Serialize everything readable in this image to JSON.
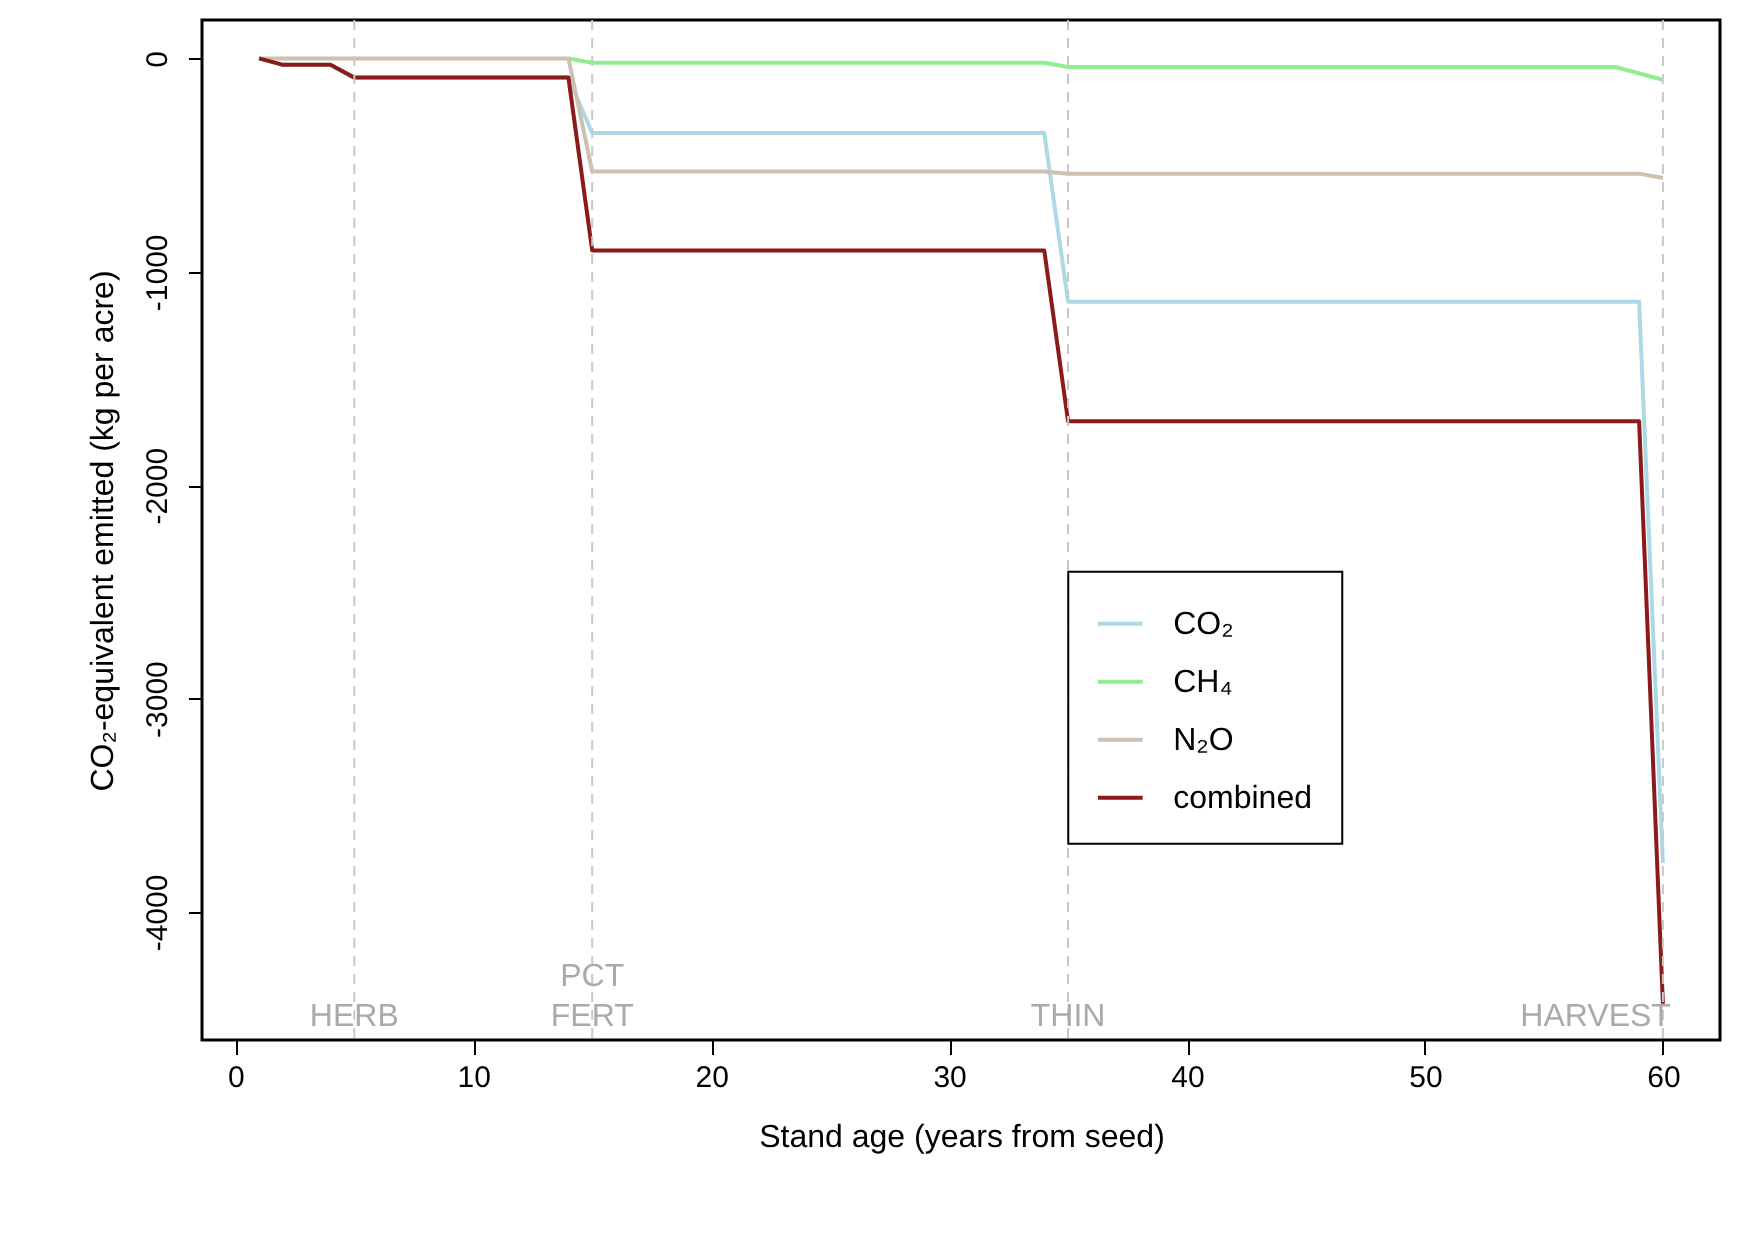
{
  "chart_data": {
    "type": "line",
    "xlabel": "Stand age (years from seed)",
    "ylabel": "CO₂-equivalent emitted (kg per acre)",
    "xlim": [
      -1.4,
      62.4
    ],
    "xticks": [
      0,
      10,
      20,
      30,
      40,
      50,
      60
    ],
    "ylim": [
      -4600,
      180
    ],
    "yticks": [
      0,
      -1000,
      -2000,
      -3000,
      -4000
    ],
    "grid": false,
    "legend": "right",
    "series": [
      {
        "name": "CO₂",
        "color": "#add8e6",
        "x": [
          1,
          2,
          4,
          5,
          14,
          15,
          34,
          35,
          59,
          60
        ],
        "values": [
          0,
          -30,
          -30,
          -90,
          -90,
          -350,
          -350,
          -1140,
          -1140,
          -3770
        ]
      },
      {
        "name": "CH₄",
        "color": "#90ee90",
        "x": [
          14,
          15,
          34,
          35,
          58,
          60
        ],
        "values": [
          0,
          -20,
          -20,
          -40,
          -40,
          -100
        ]
      },
      {
        "name": "N₂O",
        "color": "#cdc0b0",
        "x": [
          1,
          2,
          4,
          5,
          14,
          15,
          34,
          35,
          59,
          60
        ],
        "values": [
          0,
          0,
          0,
          0,
          0,
          -530,
          -530,
          -540,
          -540,
          -560
        ]
      },
      {
        "name": "combined",
        "color": "#8b1a1a",
        "x": [
          1,
          2,
          4,
          5,
          14,
          15,
          34,
          35,
          59,
          60
        ],
        "values": [
          0,
          -30,
          -30,
          -90,
          -90,
          -900,
          -900,
          -1700,
          -1700,
          -4430
        ]
      }
    ],
    "ref_lines": [
      {
        "axis": "x",
        "value": 5,
        "label": "HERB",
        "color": "#c8c8c8",
        "line_style": "dashed"
      },
      {
        "axis": "x",
        "value": 15,
        "label": "PCT\nFERT",
        "color": "#c8c8c8",
        "line_style": "dashed"
      },
      {
        "axis": "x",
        "value": 35,
        "label": "THIN",
        "color": "#c8c8c8",
        "line_style": "dashed"
      },
      {
        "axis": "x",
        "value": 60,
        "label": "HARVEST",
        "color": "#c8c8c8",
        "line_style": "dashed"
      }
    ]
  }
}
